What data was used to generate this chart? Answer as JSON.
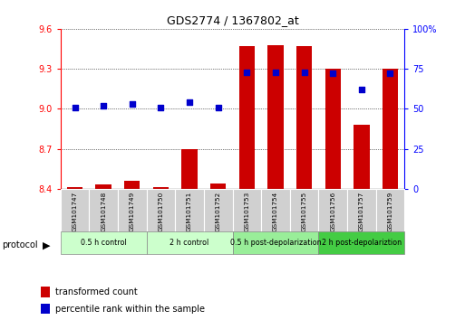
{
  "title": "GDS2774 / 1367802_at",
  "samples": [
    "GSM101747",
    "GSM101748",
    "GSM101749",
    "GSM101750",
    "GSM101751",
    "GSM101752",
    "GSM101753",
    "GSM101754",
    "GSM101755",
    "GSM101756",
    "GSM101757",
    "GSM101759"
  ],
  "bar_values": [
    8.41,
    8.43,
    8.46,
    8.41,
    8.7,
    8.44,
    9.47,
    9.48,
    9.47,
    9.3,
    8.88,
    9.3
  ],
  "percentile_values": [
    51,
    52,
    53,
    51,
    54,
    51,
    73,
    73,
    73,
    72,
    62,
    72
  ],
  "ylim_left": [
    8.4,
    9.6
  ],
  "ylim_right": [
    0,
    100
  ],
  "yticks_left": [
    8.4,
    8.7,
    9.0,
    9.3,
    9.6
  ],
  "yticks_right": [
    0,
    25,
    50,
    75,
    100
  ],
  "bar_color": "#cc0000",
  "dot_color": "#0000cc",
  "protocol_groups": [
    {
      "label": "0.5 h control",
      "start": 0,
      "end": 2,
      "color": "#ccffcc"
    },
    {
      "label": "2 h control",
      "start": 3,
      "end": 5,
      "color": "#ccffcc"
    },
    {
      "label": "0.5 h post-depolarization",
      "start": 6,
      "end": 8,
      "color": "#99ee99"
    },
    {
      "label": "2 h post-depolariztion",
      "start": 9,
      "end": 11,
      "color": "#44cc44"
    }
  ],
  "legend_items": [
    {
      "label": "transformed count",
      "color": "#cc0000"
    },
    {
      "label": "percentile rank within the sample",
      "color": "#0000cc"
    }
  ]
}
